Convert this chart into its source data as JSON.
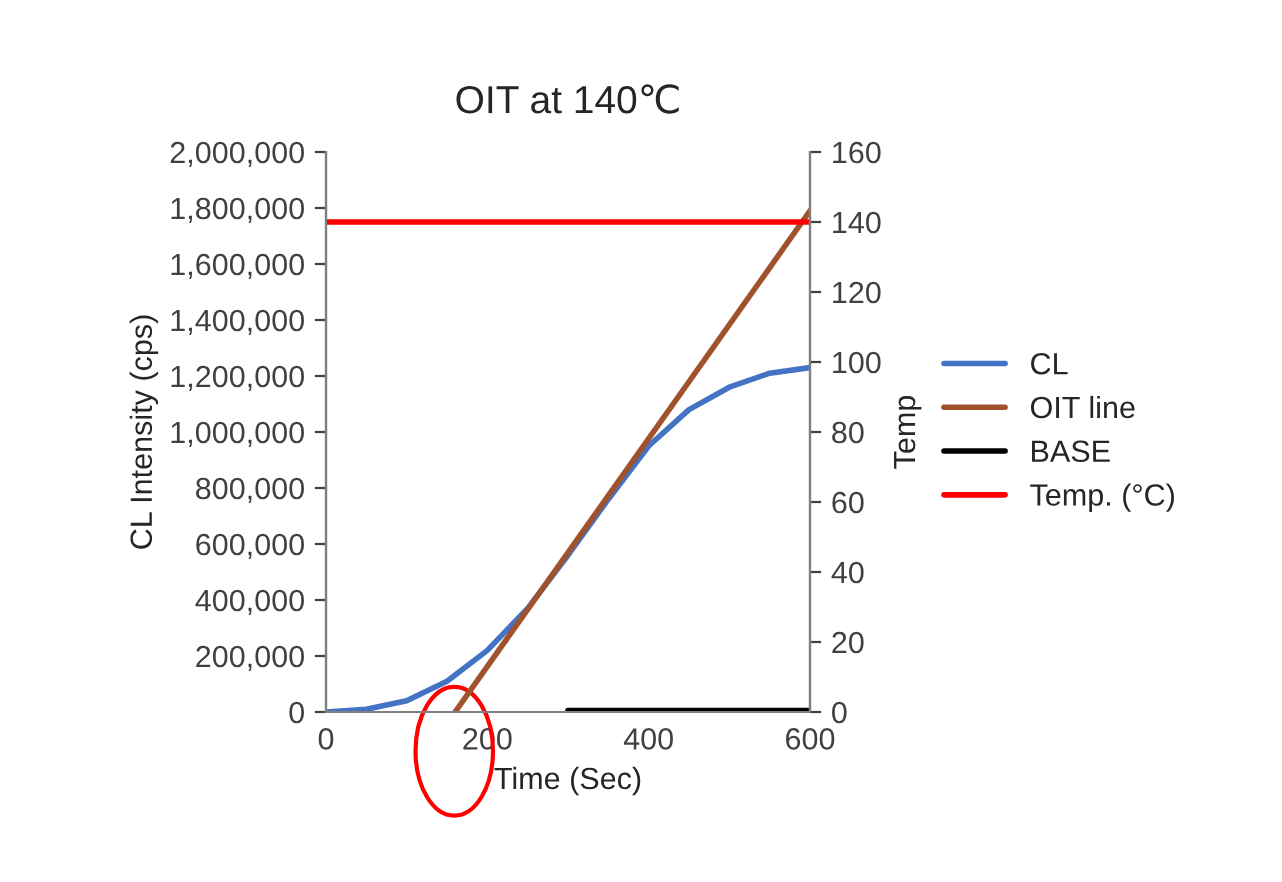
{
  "chart_data": {
    "type": "line",
    "title": "OIT at 140℃",
    "xlabel": "Time (Sec)",
    "ylabel": "CL Intensity (cps)",
    "y2label": "Temp",
    "xlim": [
      0,
      600
    ],
    "xticks": [
      0,
      200,
      400,
      600
    ],
    "ylim": [
      0,
      2000000
    ],
    "yticks": [
      0,
      {
        "value": 200000,
        "label": "200,000"
      },
      {
        "value": 400000,
        "label": "400,000"
      },
      {
        "value": 600000,
        "label": "600,000"
      },
      {
        "value": 800000,
        "label": "800,000"
      },
      {
        "value": 1000000,
        "label": "1,000,000"
      },
      {
        "value": 1200000,
        "label": "1,200,000"
      },
      {
        "value": 1400000,
        "label": "1,400,000"
      },
      {
        "value": 1600000,
        "label": "1,600,000"
      },
      {
        "value": 1800000,
        "label": "1,800,000"
      },
      {
        "value": 2000000,
        "label": "2,000,000"
      }
    ],
    "y2lim": [
      0,
      160
    ],
    "y2ticks": [
      0,
      20,
      40,
      60,
      80,
      100,
      120,
      140,
      160
    ],
    "grid": false,
    "legend": "right",
    "marker": "none",
    "line_style": "solid",
    "series": [
      {
        "name": "CL",
        "color": "#4472c4",
        "x": [
          0,
          50,
          100,
          150,
          200,
          250,
          300,
          350,
          400,
          450,
          500,
          550,
          600
        ],
        "values": [
          0,
          10000,
          40000,
          110000,
          220000,
          370000,
          560000,
          760000,
          950000,
          1080000,
          1160000,
          1210000,
          1230000
        ]
      },
      {
        "name": "OIT line",
        "color": "#a0522d",
        "x": [
          160,
          600
        ],
        "values": [
          0,
          1790000
        ]
      },
      {
        "name": "BASE",
        "color": "#000000",
        "x": [
          300,
          600
        ],
        "values": [
          5000,
          5000
        ]
      },
      {
        "name": "Temp. (°C)",
        "color": "#ff0000",
        "axis": "y2",
        "x": [
          0,
          600
        ],
        "values": [
          140,
          140
        ]
      }
    ]
  }
}
